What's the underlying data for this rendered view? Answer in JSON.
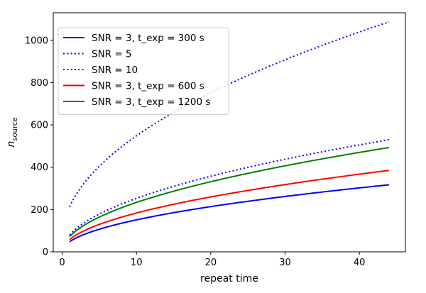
{
  "chart_data": {
    "type": "line",
    "xlabel": "repeat time",
    "ylabel": {
      "main": "n",
      "sub": "source"
    },
    "xlim": [
      -1.2,
      46.2
    ],
    "ylim": [
      0,
      1130
    ],
    "xticks": [
      0,
      10,
      20,
      30,
      40
    ],
    "yticks": [
      0,
      200,
      400,
      600,
      800,
      1000
    ],
    "legend_position": "top-left",
    "grid": false,
    "series": [
      {
        "name": "SNR = 3, t_exp = 300 s",
        "color": "#0000ff",
        "style": "solid",
        "x_range": [
          1,
          44
        ],
        "start": 48,
        "end": 317
      },
      {
        "name": "SNR = 5",
        "color": "#0000ff",
        "style": "dotted",
        "x_range": [
          1,
          44
        ],
        "start": 80,
        "end": 530
      },
      {
        "name": "SNR = 10",
        "color": "#0000ff",
        "style": "dotted",
        "x_range": [
          1,
          44
        ],
        "start": 213,
        "end": 1087
      },
      {
        "name": "SNR = 3, t_exp = 600 s",
        "color": "#ff0000",
        "style": "solid",
        "x_range": [
          1,
          44
        ],
        "start": 58,
        "end": 385
      },
      {
        "name": "SNR = 3, t_exp = 1200 s",
        "color": "#008000",
        "style": "solid",
        "x_range": [
          1,
          44
        ],
        "start": 72,
        "end": 493
      }
    ]
  }
}
